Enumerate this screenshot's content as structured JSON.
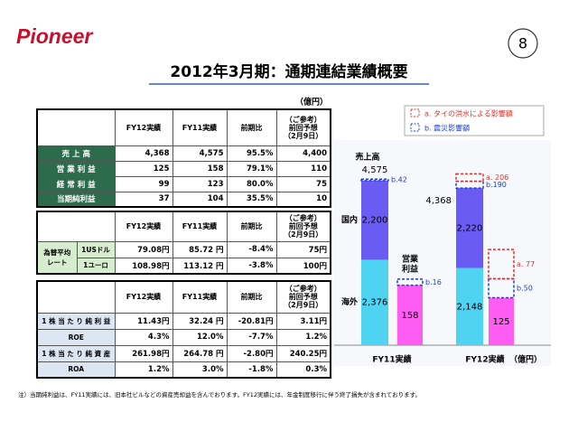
{
  "header": {
    "logo": "Pioneer",
    "page_number": "8",
    "title": "2012年3月期：通期連結業績概要",
    "unit": "（億円）"
  },
  "tables": [
    {
      "columns": [
        "FY12実績",
        "FY11実績",
        "前期比",
        [
          "（ご参考）",
          "前回予想",
          "（2月9日）"
        ]
      ],
      "rows": [
        [
          "売 上 高",
          "4,368",
          "4,575",
          "95.5%",
          "4,400"
        ],
        [
          "営 業 利 益",
          "125",
          "158",
          "79.1%",
          "110"
        ],
        [
          "経 常 利 益",
          "99",
          "123",
          "80.0%",
          "75"
        ],
        [
          "当期純利益",
          "37",
          "104",
          "35.5%",
          "10"
        ]
      ]
    },
    {
      "columns": [
        "FY12実績",
        "FY11実績",
        "前期比",
        [
          "（ご参考）",
          "前回予想",
          "（2月9日）"
        ]
      ],
      "group": [
        "為替平均",
        "レート"
      ],
      "rows": [
        [
          "1USドル",
          "79.08円",
          "85.72 円",
          "-8.4%",
          "75円"
        ],
        [
          "1ユーロ",
          "108.98円",
          "113.12 円",
          "-3.8%",
          "100円"
        ]
      ]
    },
    {
      "columns": [
        "FY12実績",
        "FY11実績",
        "前期比",
        [
          "（ご参考）",
          "前回予想",
          "（2月9日）"
        ]
      ],
      "rows": [
        [
          "1 株 当 た り 純 利 益",
          "11.43円",
          "32.24 円",
          "-20.81円",
          "3.11円"
        ],
        [
          "ROE",
          "4.3%",
          "12.0%",
          "-7.7%",
          "1.2%"
        ],
        [
          "1 株 当 た り 純 資 産",
          "261.98円",
          "264.78 円",
          "-2.80円",
          "240.25円"
        ],
        [
          "ROA",
          "1.2%",
          "3.0%",
          "-1.8%",
          "0.3%"
        ]
      ]
    }
  ],
  "legend": {
    "a": {
      "label": "a. タイの洪水による影響額",
      "color": "#e0302a"
    },
    "b": {
      "label": "b. 震災影響額",
      "color": "#1f3fd0"
    }
  },
  "chart": {
    "type": "bar",
    "unit": "（億円）",
    "categories": [
      "FY11実績",
      "FY12実績"
    ],
    "sales": {
      "label": "売上高",
      "total": {
        "values": [
          4575,
          4368
        ],
        "value_labels": [
          "4,575",
          "4,368"
        ]
      },
      "series": [
        {
          "name": "海外",
          "color": "#4fd3f2",
          "values": [
            2376,
            2148
          ],
          "value_labels": [
            "2,376",
            "2,148"
          ]
        },
        {
          "name": "国内",
          "color": "#6a5cf2",
          "values": [
            2200,
            2220
          ],
          "value_labels": [
            "2,200",
            "2,220"
          ]
        }
      ],
      "b": {
        "values": [
          42,
          190
        ],
        "value_labels": [
          "b.42",
          "b.190"
        ]
      },
      "a": {
        "values": [
          null,
          206
        ],
        "value_labels": [
          null,
          "a. 206"
        ]
      }
    },
    "operating": {
      "label": [
        "営業",
        "利益"
      ],
      "color": "#ff5cf4",
      "values": [
        158,
        125
      ],
      "b": {
        "values": [
          16,
          50
        ],
        "value_labels": [
          "b.16",
          "b.50"
        ]
      },
      "a": {
        "values": [
          null,
          77
        ],
        "value_labels": [
          null,
          "a. 77"
        ]
      }
    }
  },
  "footnote": "注）当期純利益は、FY11実績には、旧本社ビルなどの資産売却益を含んでおります。FY12実績には、年金制度移行に伴う終了損失が含まれております。"
}
